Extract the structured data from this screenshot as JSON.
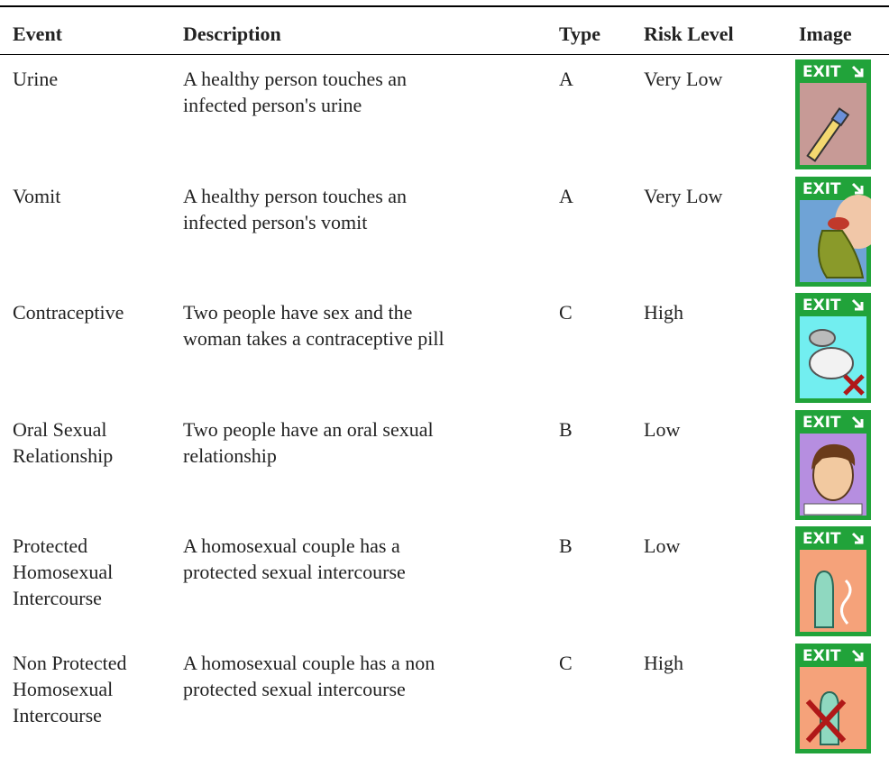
{
  "table": {
    "columns": [
      "Event",
      "Description",
      "Type",
      "Risk Level",
      "Image"
    ],
    "rows": [
      {
        "event": [
          "Urine"
        ],
        "description": [
          "A healthy person touches an",
          "infected person's urine"
        ],
        "type": "A",
        "risk": "Very Low",
        "image": {
          "label": "EXIT",
          "background": "#c79a96"
        }
      },
      {
        "event": [
          "Vomit"
        ],
        "description": [
          "A healthy person touches an",
          "infected person's vomit"
        ],
        "type": "A",
        "risk": "Very Low",
        "image": {
          "label": "EXIT",
          "background": "#6fa3d6"
        }
      },
      {
        "event": [
          "Contraceptive"
        ],
        "description": [
          "Two people have sex and the",
          "woman takes a contraceptive pill"
        ],
        "type": "C",
        "risk": "High",
        "image": {
          "label": "EXIT",
          "background": "#72eef0"
        }
      },
      {
        "event": [
          "Oral Sexual",
          "Relationship"
        ],
        "description": [
          "Two people have an oral sexual",
          "relationship"
        ],
        "type": "B",
        "risk": "Low",
        "image": {
          "label": "EXIT",
          "background": "#b68ee0"
        }
      },
      {
        "event": [
          "Protected",
          "Homosexual",
          "Intercourse"
        ],
        "description": [
          "A homosexual couple has a",
          "protected sexual intercourse"
        ],
        "type": "B",
        "risk": "Low",
        "image": {
          "label": "EXIT",
          "background": "#f5a27a"
        }
      },
      {
        "event": [
          "Non Protected",
          "Homosexual",
          "Intercourse"
        ],
        "description": [
          "A homosexual couple has a non",
          "protected sexual intercourse"
        ],
        "type": "C",
        "risk": "High",
        "image": {
          "label": "EXIT",
          "background": "#f5a27a"
        }
      }
    ]
  }
}
